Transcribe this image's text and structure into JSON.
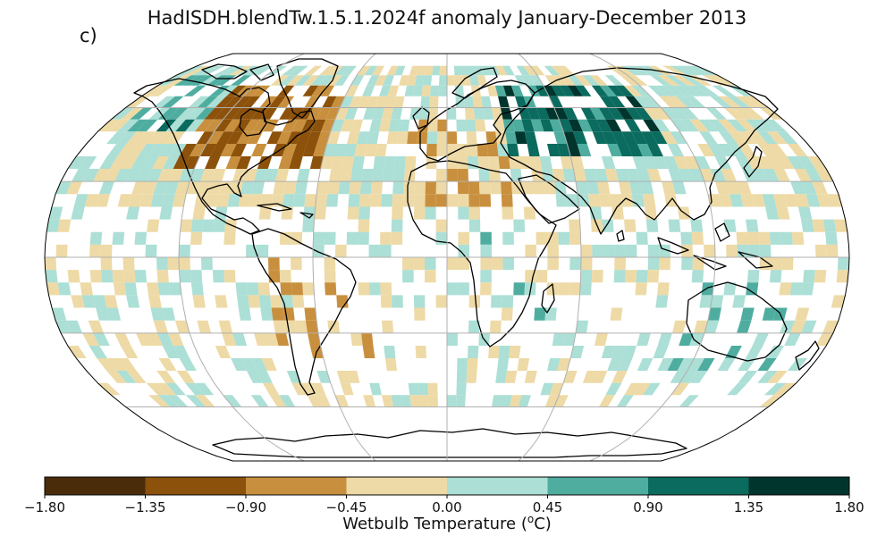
{
  "title": "HadISDH.blendTw.1.5.1.2024f anomaly January-December 2013",
  "panel_label": "c)",
  "colorbar": {
    "label_text": "Wetbulb Temperature (",
    "label_sup": "o",
    "label_unit": "C)",
    "ticks": [
      "−1.80",
      "−1.35",
      "−0.90",
      "−0.45",
      "0.00",
      "0.45",
      "0.90",
      "1.35",
      "1.80"
    ],
    "bin_edges": [
      -1.8,
      -1.35,
      -0.9,
      -0.45,
      0.0,
      0.45,
      0.9,
      1.35,
      1.8
    ],
    "colors": [
      "#4a2c0a",
      "#8c510a",
      "#c8903e",
      "#eedaa6",
      "#acdfd6",
      "#4fada0",
      "#0a6b5e",
      "#00352e"
    ]
  },
  "map": {
    "projection": "robinson",
    "grid_color": "#b0b0b0",
    "outline_color": "#000000",
    "lon_gridlines_deg": [
      -120,
      -60,
      0,
      60,
      120
    ],
    "lat_gridlines_deg": [
      -60,
      -30,
      0,
      30,
      60
    ]
  }
}
